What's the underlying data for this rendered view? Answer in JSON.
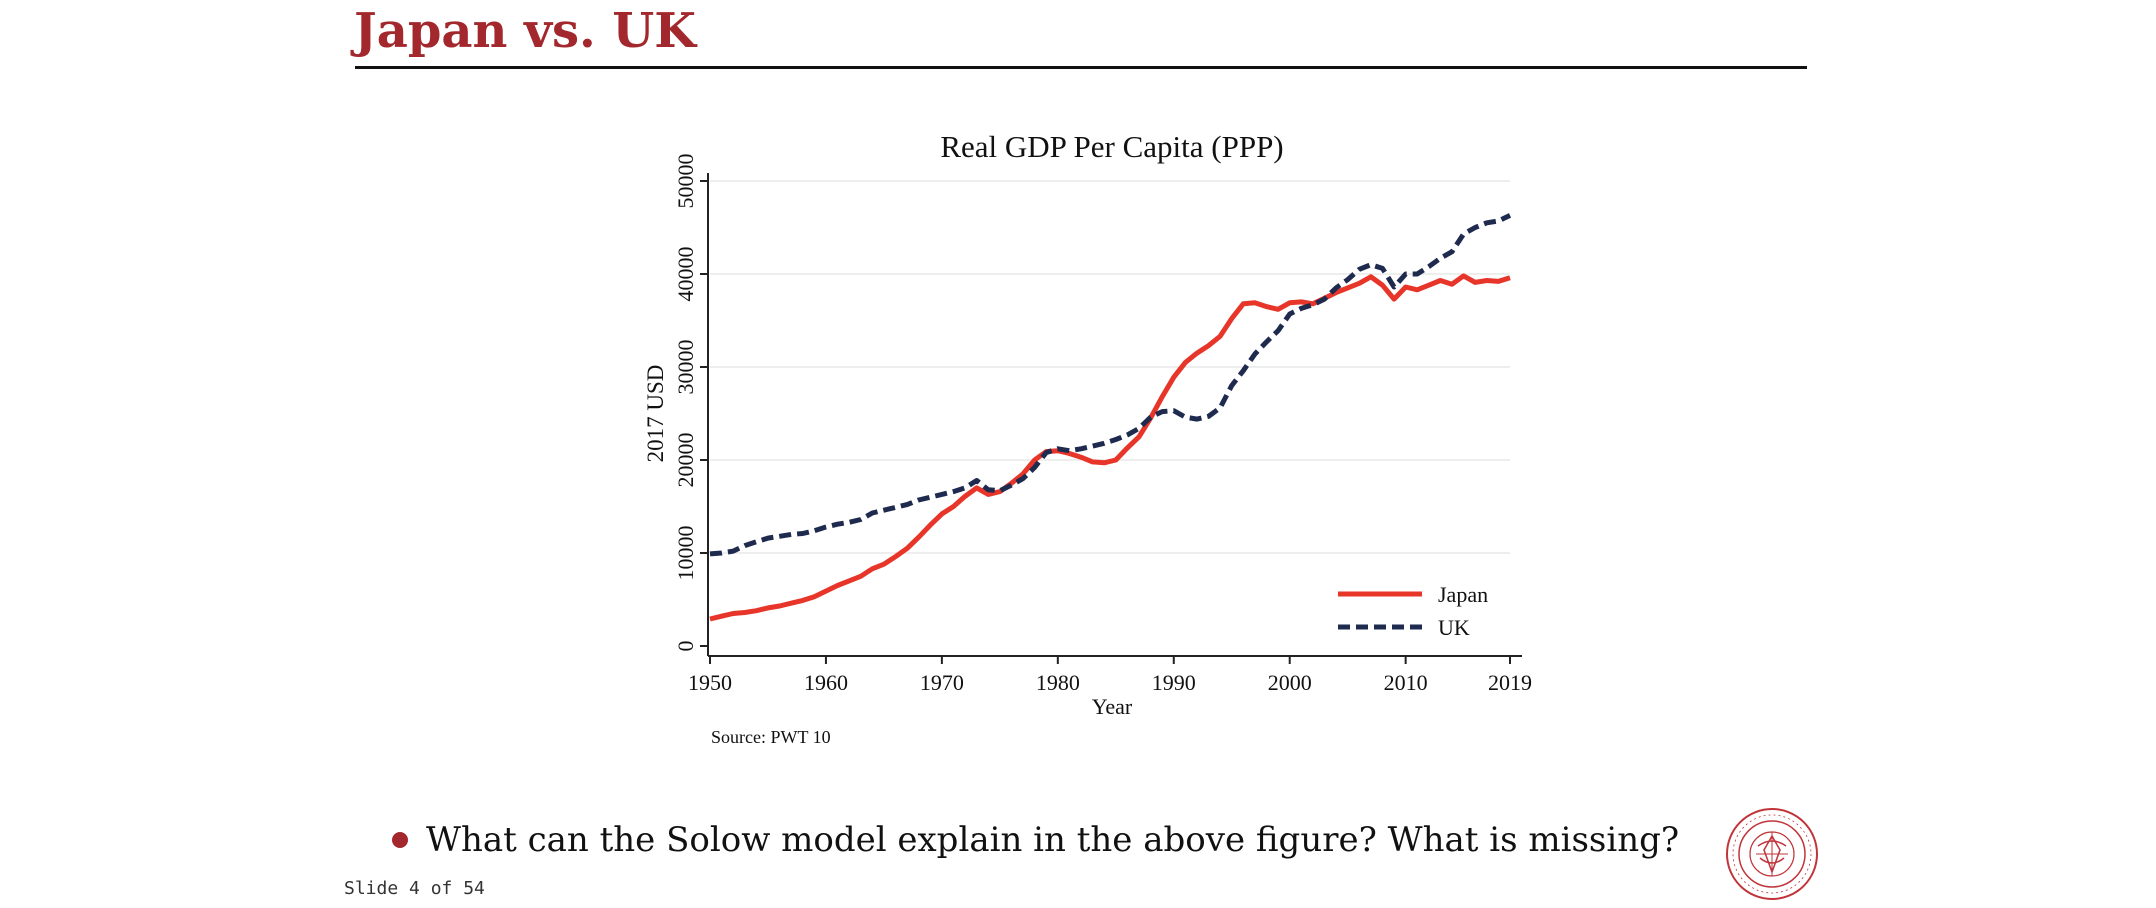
{
  "slide": {
    "title": "Japan vs. UK",
    "bullet": "What can the Solow model explain in the above figure? What is missing?",
    "slide_number": "Slide 4 of 54",
    "colors": {
      "title": "#a3282d",
      "accent": "#a3282d"
    },
    "seal_text": "CARNEGIE MELLON UNIVERSITY · PITTSBURGH PENNSYLVANIA"
  },
  "chart_data": {
    "type": "line",
    "title": "Real GDP Per Capita (PPP)",
    "xlabel": "Year",
    "ylabel": "2017 USD",
    "source": "Source: PWT 10",
    "xlim": [
      1950,
      2019
    ],
    "ylim": [
      0,
      50000
    ],
    "x_ticks": [
      1950,
      1960,
      1970,
      1980,
      1990,
      2000,
      2010,
      2019
    ],
    "y_ticks": [
      0,
      10000,
      20000,
      30000,
      40000,
      50000
    ],
    "grid": true,
    "legend_position": "bottom-right",
    "x": [
      1950,
      1951,
      1952,
      1953,
      1954,
      1955,
      1956,
      1957,
      1958,
      1959,
      1960,
      1961,
      1962,
      1963,
      1964,
      1965,
      1966,
      1967,
      1968,
      1969,
      1970,
      1971,
      1972,
      1973,
      1974,
      1975,
      1976,
      1977,
      1978,
      1979,
      1980,
      1981,
      1982,
      1983,
      1984,
      1985,
      1986,
      1987,
      1988,
      1989,
      1990,
      1991,
      1992,
      1993,
      1994,
      1995,
      1996,
      1997,
      1998,
      1999,
      2000,
      2001,
      2002,
      2003,
      2004,
      2005,
      2006,
      2007,
      2008,
      2009,
      2010,
      2011,
      2012,
      2013,
      2014,
      2015,
      2016,
      2017,
      2018,
      2019
    ],
    "series": [
      {
        "name": "Japan",
        "color": "#e8352a",
        "style": "solid",
        "values": [
          2900,
          3200,
          3500,
          3600,
          3800,
          4100,
          4300,
          4600,
          4900,
          5300,
          5900,
          6500,
          7000,
          7500,
          8300,
          8800,
          9600,
          10500,
          11700,
          13000,
          14200,
          15000,
          16100,
          17000,
          16300,
          16600,
          17500,
          18500,
          20000,
          20900,
          21000,
          20700,
          20300,
          19800,
          19700,
          20000,
          21300,
          22500,
          24500,
          26800,
          28900,
          30500,
          31500,
          32300,
          33300,
          35200,
          36800,
          36900,
          36500,
          36200,
          36900,
          37000,
          36800,
          37400,
          38000,
          38500,
          39000,
          39700,
          38800,
          37300,
          38600,
          38300,
          38800,
          39300,
          38900,
          39800,
          39100,
          39300,
          39200,
          39600
        ]
      },
      {
        "name": "UK",
        "color": "#1f2a4f",
        "style": "dashed",
        "values": [
          9900,
          10000,
          10200,
          10800,
          11200,
          11600,
          11800,
          12000,
          12100,
          12400,
          12800,
          13100,
          13300,
          13600,
          14300,
          14600,
          14900,
          15200,
          15700,
          16000,
          16300,
          16600,
          17000,
          17800,
          16800,
          16700,
          17300,
          18000,
          19200,
          20800,
          21200,
          21000,
          21200,
          21500,
          21800,
          22200,
          22700,
          23400,
          24600,
          25200,
          25300,
          24600,
          24400,
          24700,
          25600,
          28000,
          29600,
          31400,
          32700,
          33900,
          35700,
          36300,
          36700,
          37300,
          38500,
          39400,
          40500,
          41000,
          40600,
          38600,
          40000,
          40000,
          40800,
          41700,
          42400,
          44300,
          45000,
          45500,
          45700,
          46300
        ]
      }
    ]
  }
}
